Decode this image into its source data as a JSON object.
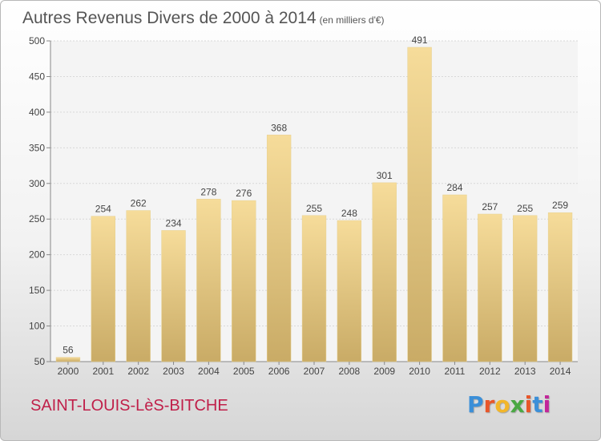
{
  "title": "Autres Revenus Divers de 2000 à 2014",
  "title_unit": "(en milliers d'€)",
  "commune": "SAINT-LOUIS-LèS-BITCHE",
  "logo_text": "Proxiti",
  "logo_colors": [
    "#3b8fd8",
    "#e8562a",
    "#f2b62a",
    "#4aa843",
    "#e8562a",
    "#3b8fd8",
    "#c2269a"
  ],
  "colors": {
    "bar_top": "#f6dc9a",
    "bar_bottom": "#c9ab66",
    "commune": "#c0204a",
    "text": "#555555"
  },
  "chart_data": {
    "type": "bar",
    "categories": [
      "2000",
      "2001",
      "2002",
      "2003",
      "2004",
      "2005",
      "2006",
      "2007",
      "2008",
      "2009",
      "2010",
      "2011",
      "2012",
      "2013",
      "2014"
    ],
    "values": [
      56,
      254,
      262,
      234,
      278,
      276,
      368,
      255,
      248,
      301,
      491,
      284,
      257,
      255,
      259
    ],
    "ylim": [
      50,
      500
    ],
    "yticks": [
      50,
      100,
      150,
      200,
      250,
      300,
      350,
      400,
      450,
      500
    ],
    "grid": true,
    "data_labels": true
  }
}
